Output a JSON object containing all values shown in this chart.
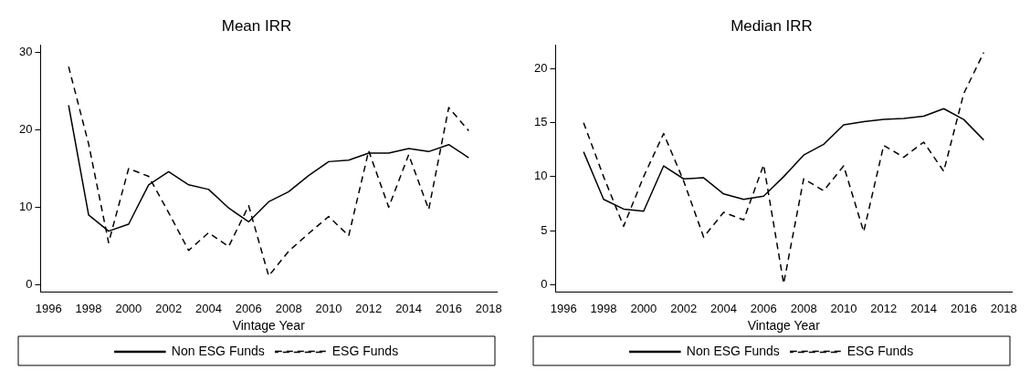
{
  "chart_data": [
    {
      "type": "line",
      "title": "Mean IRR",
      "xlabel": "Vintage Year",
      "x": [
        1997,
        1998,
        1999,
        2000,
        2001,
        2002,
        2003,
        2004,
        2005,
        2006,
        2007,
        2008,
        2009,
        2010,
        2011,
        2012,
        2013,
        2014,
        2015,
        2016,
        2017
      ],
      "xlim": [
        1995.6,
        2018.4
      ],
      "xticks": [
        1996,
        1998,
        2000,
        2002,
        2004,
        2006,
        2008,
        2010,
        2012,
        2014,
        2016,
        2018
      ],
      "ylim": [
        -1,
        31
      ],
      "yticks": [
        0,
        10,
        20,
        30
      ],
      "grid": false,
      "legend": "bottom",
      "marker": "none",
      "series": [
        {
          "name": "Non ESG Funds",
          "color": "#000000",
          "line_style": "solid",
          "values": [
            23.2,
            9.0,
            6.9,
            7.8,
            12.9,
            14.6,
            12.9,
            12.3,
            9.9,
            8.1,
            10.7,
            12.0,
            14.1,
            15.9,
            16.1,
            17.0,
            17.0,
            17.6,
            17.2,
            18.1,
            16.4
          ]
        },
        {
          "name": "ESG Funds",
          "color": "#000000",
          "line_style": "dashed",
          "values": [
            28.2,
            18.2,
            5.4,
            15.0,
            14.0,
            9.3,
            4.4,
            6.7,
            4.9,
            10.2,
            1.1,
            4.3,
            6.6,
            8.8,
            6.3,
            17.3,
            10.0,
            16.8,
            9.7,
            22.9,
            19.9
          ]
        }
      ]
    },
    {
      "type": "line",
      "title": "Median IRR",
      "xlabel": "Vintage Year",
      "x": [
        1997,
        1998,
        1999,
        2000,
        2001,
        2002,
        2003,
        2004,
        2005,
        2006,
        2007,
        2008,
        2009,
        2010,
        2011,
        2012,
        2013,
        2014,
        2015,
        2016,
        2017
      ],
      "xlim": [
        1995.6,
        2018.4
      ],
      "xticks": [
        1996,
        1998,
        2000,
        2002,
        2004,
        2006,
        2008,
        2010,
        2012,
        2014,
        2016,
        2018
      ],
      "ylim": [
        -0.7,
        22.2
      ],
      "yticks": [
        0,
        5,
        10,
        15,
        20
      ],
      "grid": false,
      "legend": "bottom",
      "marker": "none",
      "series": [
        {
          "name": "Non ESG Funds",
          "color": "#000000",
          "line_style": "solid",
          "values": [
            12.3,
            7.9,
            7.0,
            6.8,
            11.0,
            9.8,
            9.9,
            8.4,
            7.9,
            8.2,
            10.0,
            12.0,
            13.0,
            14.8,
            15.1,
            15.3,
            15.4,
            15.6,
            16.3,
            15.3,
            13.4
          ]
        },
        {
          "name": "ESG Funds",
          "color": "#000000",
          "line_style": "dashed",
          "values": [
            15.0,
            10.0,
            5.4,
            10.0,
            14.0,
            9.6,
            4.4,
            6.7,
            6.0,
            11.1,
            0.1,
            9.8,
            8.7,
            11.0,
            4.9,
            12.9,
            11.8,
            13.2,
            10.5,
            17.7,
            21.5
          ]
        }
      ]
    }
  ]
}
